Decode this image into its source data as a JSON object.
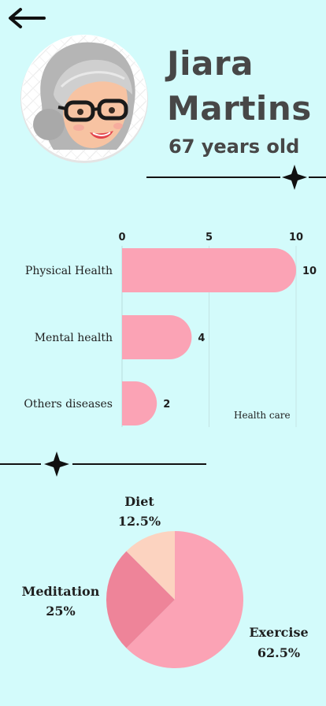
{
  "header": {
    "back_icon": "arrow-left-icon",
    "first_name": "Jiara",
    "last_name": "Martins",
    "age": "67 years old"
  },
  "colors": {
    "background": "#d3fbfb",
    "bar": "#fba3b5",
    "pie_exercise": "#fba3b5",
    "pie_meditation": "#ee8499",
    "pie_diet": "#fcd3c0",
    "text_dark": "#474747"
  },
  "chart_data": [
    {
      "type": "bar",
      "orientation": "horizontal",
      "categories": [
        "Physical Health",
        "Mental health",
        "Others diseases"
      ],
      "values": [
        10,
        4,
        2
      ],
      "xticks": [
        "0",
        "5",
        "10"
      ],
      "xlim": [
        0,
        10
      ],
      "annotation": "Health care",
      "grid": true
    },
    {
      "type": "pie",
      "labels": [
        "Exercise",
        "Meditation",
        "Diet"
      ],
      "values": [
        62.5,
        25,
        12.5
      ],
      "value_labels": [
        "62.5%",
        "25%",
        "12.5%"
      ]
    }
  ]
}
